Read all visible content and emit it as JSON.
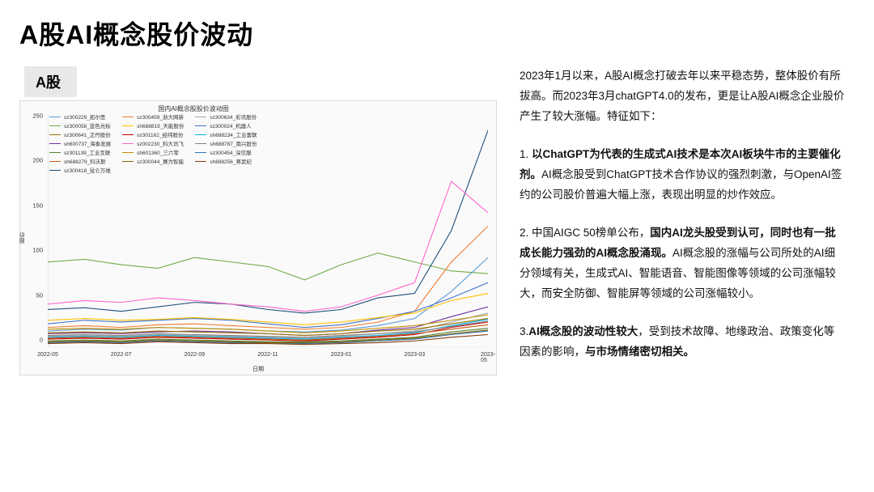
{
  "title": "A股AI概念股价波动",
  "tab": "A股",
  "text": {
    "intro": "2023年1月以来，A股AI概念打破去年以来平稳态势，整体股价有所拔高。而2023年3月chatGPT4.0的发布，更是让A股AI概念企业股价产生了较大涨幅。特征如下：",
    "p1a": "1. ",
    "p1b": "以ChatGPT为代表的生成式AI技术是本次AI板块牛市的主要催化剂。",
    "p1c": "AI概念股受到ChatGPT技术合作协议的强烈刺激，与OpenAI签约的公司股价普遍大幅上涨，表现出明显的炒作效应。",
    "p2a": "2. 中国AIGC 50榜单公布，",
    "p2b": "国内AI龙头股受到认可，同时也有一批成长能力强劲的AI概念股涌现。",
    "p2c": "AI概念股的涨幅与公司所处的AI细分领域有关，生成式AI、智能语音、智能图像等领域的公司涨幅较大，而安全防御、智能屏等领域的公司涨幅较小。",
    "p3a": "3.",
    "p3b": "AI概念股的波动性较大",
    "p3c": "，受到技术故障、地缘政治、政策变化等因素的影响，",
    "p3d": "与市场情绪密切相关。"
  },
  "chart": {
    "type": "line",
    "title": "国内AI概念股股价波动图",
    "xlabel": "日期",
    "ylabel": "股价",
    "background": "#fafafa",
    "grid_color": "#e8e8e8",
    "axis_color": "#bfbfbf",
    "line_width": 1.1,
    "ylim": [
      0,
      260
    ],
    "ytick_step": 50,
    "yticks": [
      0,
      50,
      100,
      150,
      200,
      250
    ],
    "xlim": [
      0,
      12
    ],
    "xticks": [
      {
        "pos": 0,
        "label": "2022-05"
      },
      {
        "pos": 2,
        "label": "2022-07"
      },
      {
        "pos": 4,
        "label": "2022-09"
      },
      {
        "pos": 6,
        "label": "2022-11"
      },
      {
        "pos": 8,
        "label": "2023-01"
      },
      {
        "pos": 10,
        "label": "2023-03"
      },
      {
        "pos": 12,
        "label": "2023-05"
      }
    ],
    "legend_items": [
      {
        "label": "sz300229_拓尔思",
        "color": "#5b9bd5"
      },
      {
        "label": "sz300459_浙大网新",
        "color": "#ed7d31"
      },
      {
        "label": "sz300634_彩讯股份",
        "color": "#a5a5a5"
      },
      {
        "label": "sz300058_蓝色光标",
        "color": "#70ad47"
      },
      {
        "label": "sh688819_天能股份",
        "color": "#ffc000"
      },
      {
        "label": "sz300024_机器人",
        "color": "#4472c4"
      },
      {
        "label": "sz300641_正丹股份",
        "color": "#997300"
      },
      {
        "label": "sz301162_经纬股份",
        "color": "#c00000"
      },
      {
        "label": "sh688234_工业富联",
        "color": "#00b0f0"
      },
      {
        "label": "sh600737_海泰发展",
        "color": "#7030a0"
      },
      {
        "label": "sz002230_科大讯飞",
        "color": "#ff66cc"
      },
      {
        "label": "sh688787_南兴股份",
        "color": "#808080"
      },
      {
        "label": "sz301139_工业互联",
        "color": "#548235"
      },
      {
        "label": "sh601360_三六零",
        "color": "#bf8f00"
      },
      {
        "label": "sz300454_深信服",
        "color": "#2e75b6"
      },
      {
        "label": "sh688279_科沃斯",
        "color": "#c55a11"
      },
      {
        "label": "sz300044_赛为智能",
        "color": "#7f6000"
      },
      {
        "label": "sh688256_寒武纪",
        "color": "#843c0c"
      },
      {
        "label": "sz300418_昆仑万维",
        "color": "#1f4e79"
      }
    ],
    "series": [
      {
        "color": "#70ad47",
        "values": [
          95,
          98,
          92,
          88,
          100,
          95,
          90,
          75,
          92,
          105,
          95,
          85,
          82
        ]
      },
      {
        "color": "#1f4e79",
        "values": [
          42,
          44,
          40,
          45,
          50,
          48,
          42,
          38,
          42,
          55,
          60,
          130,
          242
        ]
      },
      {
        "color": "#ff66cc",
        "values": [
          48,
          52,
          50,
          55,
          52,
          48,
          45,
          40,
          45,
          58,
          72,
          185,
          150
        ]
      },
      {
        "color": "#ed7d31",
        "values": [
          22,
          24,
          22,
          25,
          26,
          24,
          22,
          20,
          22,
          28,
          40,
          95,
          135
        ]
      },
      {
        "color": "#5b9bd5",
        "values": [
          18,
          20,
          19,
          22,
          21,
          20,
          18,
          17,
          19,
          24,
          32,
          62,
          100
        ]
      },
      {
        "color": "#4472c4",
        "values": [
          26,
          30,
          28,
          30,
          32,
          30,
          26,
          22,
          25,
          32,
          40,
          55,
          72
        ]
      },
      {
        "color": "#ffc000",
        "values": [
          30,
          32,
          30,
          31,
          33,
          31,
          28,
          25,
          28,
          33,
          38,
          52,
          60
        ]
      },
      {
        "color": "#a5a5a5",
        "values": [
          12,
          13,
          12,
          14,
          13,
          12,
          11,
          10,
          12,
          15,
          18,
          28,
          38
        ]
      },
      {
        "color": "#7030a0",
        "values": [
          15,
          16,
          15,
          17,
          18,
          17,
          15,
          13,
          15,
          19,
          22,
          34,
          45
        ]
      },
      {
        "color": "#00b0f0",
        "values": [
          11,
          12,
          11,
          13,
          12,
          11,
          10,
          9,
          11,
          13,
          16,
          24,
          31
        ]
      },
      {
        "color": "#c00000",
        "values": [
          9,
          10,
          9,
          11,
          10,
          9,
          8,
          7,
          9,
          11,
          14,
          22,
          28
        ]
      },
      {
        "color": "#548235",
        "values": [
          7,
          8,
          7,
          9,
          8,
          7,
          6,
          6,
          7,
          9,
          11,
          17,
          21
        ]
      },
      {
        "color": "#2e75b6",
        "values": [
          5,
          6,
          5,
          7,
          6,
          5,
          5,
          4,
          5,
          7,
          9,
          14,
          18
        ]
      },
      {
        "color": "#997300",
        "values": [
          16,
          17,
          16,
          18,
          17,
          16,
          15,
          13,
          15,
          18,
          20,
          26,
          32
        ]
      },
      {
        "color": "#808080",
        "values": [
          13,
          14,
          13,
          15,
          14,
          13,
          12,
          11,
          13,
          15,
          17,
          23,
          29
        ]
      },
      {
        "color": "#bf8f00",
        "values": [
          20,
          21,
          20,
          22,
          21,
          20,
          18,
          16,
          18,
          21,
          24,
          30,
          36
        ]
      },
      {
        "color": "#c55a11",
        "values": [
          10,
          11,
          10,
          12,
          11,
          10,
          9,
          8,
          10,
          12,
          15,
          20,
          25
        ]
      },
      {
        "color": "#7f6000",
        "values": [
          6,
          7,
          6,
          8,
          7,
          6,
          5,
          5,
          6,
          8,
          10,
          15,
          19
        ]
      },
      {
        "color": "#843c0c",
        "values": [
          4,
          5,
          4,
          6,
          5,
          4,
          4,
          3,
          4,
          5,
          7,
          11,
          14
        ]
      }
    ]
  }
}
